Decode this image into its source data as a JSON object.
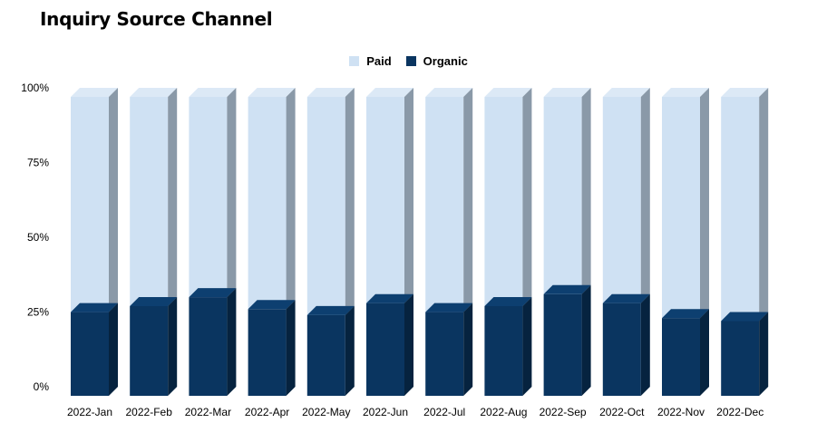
{
  "chart_data": {
    "type": "bar",
    "stacked": true,
    "percent": true,
    "title": "Inquiry Source Channel",
    "xlabel": "",
    "ylabel": "",
    "ylim": [
      0,
      100
    ],
    "yticks": [
      "0%",
      "25%",
      "50%",
      "75%",
      "100%"
    ],
    "categories": [
      "2022-Jan",
      "2022-Feb",
      "2022-Mar",
      "2022-Apr",
      "2022-May",
      "2022-Jun",
      "2022-Jul",
      "2022-Aug",
      "2022-Sep",
      "2022-Oct",
      "2022-Nov",
      "2022-Dec"
    ],
    "series": [
      {
        "name": "Organic",
        "color": "#0a3560",
        "values": [
          28,
          30,
          33,
          29,
          27,
          31,
          28,
          30,
          34,
          31,
          26,
          25
        ]
      },
      {
        "name": "Paid",
        "color": "#cfe1f3",
        "values": [
          72,
          70,
          67,
          71,
          73,
          69,
          72,
          70,
          66,
          69,
          74,
          75
        ]
      }
    ],
    "legend": {
      "position": "top",
      "order": [
        "Paid",
        "Organic"
      ]
    },
    "grid": false,
    "style": "3d"
  }
}
